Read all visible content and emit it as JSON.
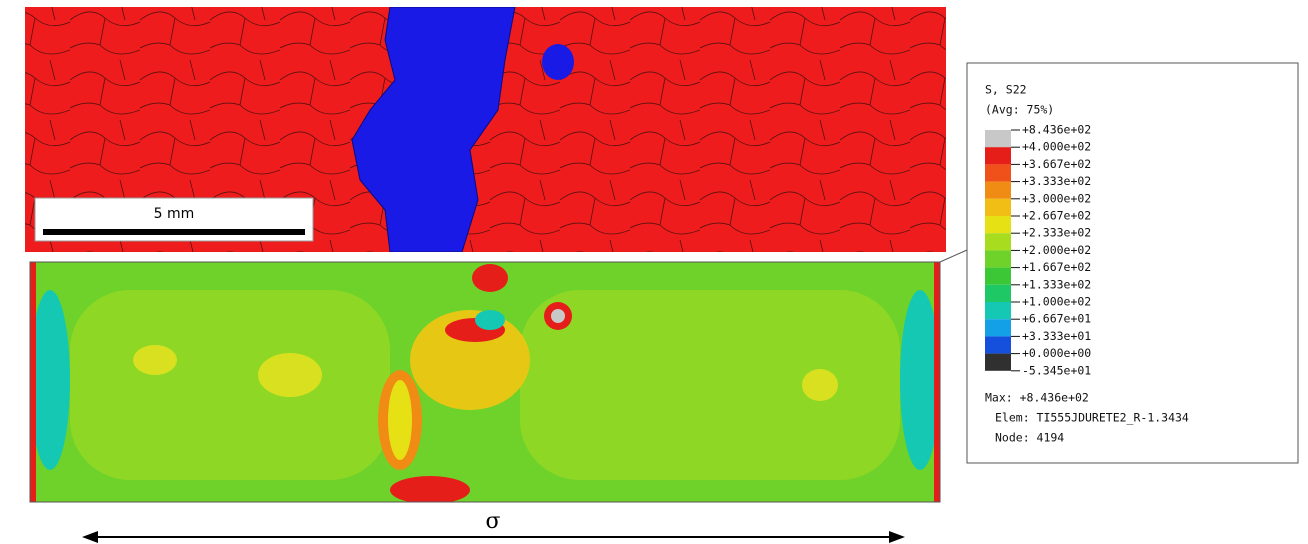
{
  "micrograph": {
    "scale_bar": "5 mm"
  },
  "legend": {
    "title": "S, S22",
    "subtitle": "(Avg: 75%)",
    "labels": [
      "+8.436e+02",
      "+4.000e+02",
      "+3.667e+02",
      "+3.333e+02",
      "+3.000e+02",
      "+2.667e+02",
      "+2.333e+02",
      "+2.000e+02",
      "+1.667e+02",
      "+1.333e+02",
      "+1.000e+02",
      "+6.667e+01",
      "+3.333e+01",
      "+0.000e+00",
      "-5.345e+01"
    ],
    "colors": [
      "#c8c8c8",
      "#e61e1a",
      "#f0501a",
      "#f08c14",
      "#f0be14",
      "#e6e114",
      "#a8dc1e",
      "#6ed22a",
      "#3cc836",
      "#1ec864",
      "#14c8b4",
      "#14a0e6",
      "#1450dc",
      "#303030"
    ],
    "max": "Max: +8.436e+02",
    "elem": "Elem: TI555JDURETE2_R-1.3434",
    "node": "Node: 4194"
  },
  "load": {
    "symbol": "σ"
  }
}
